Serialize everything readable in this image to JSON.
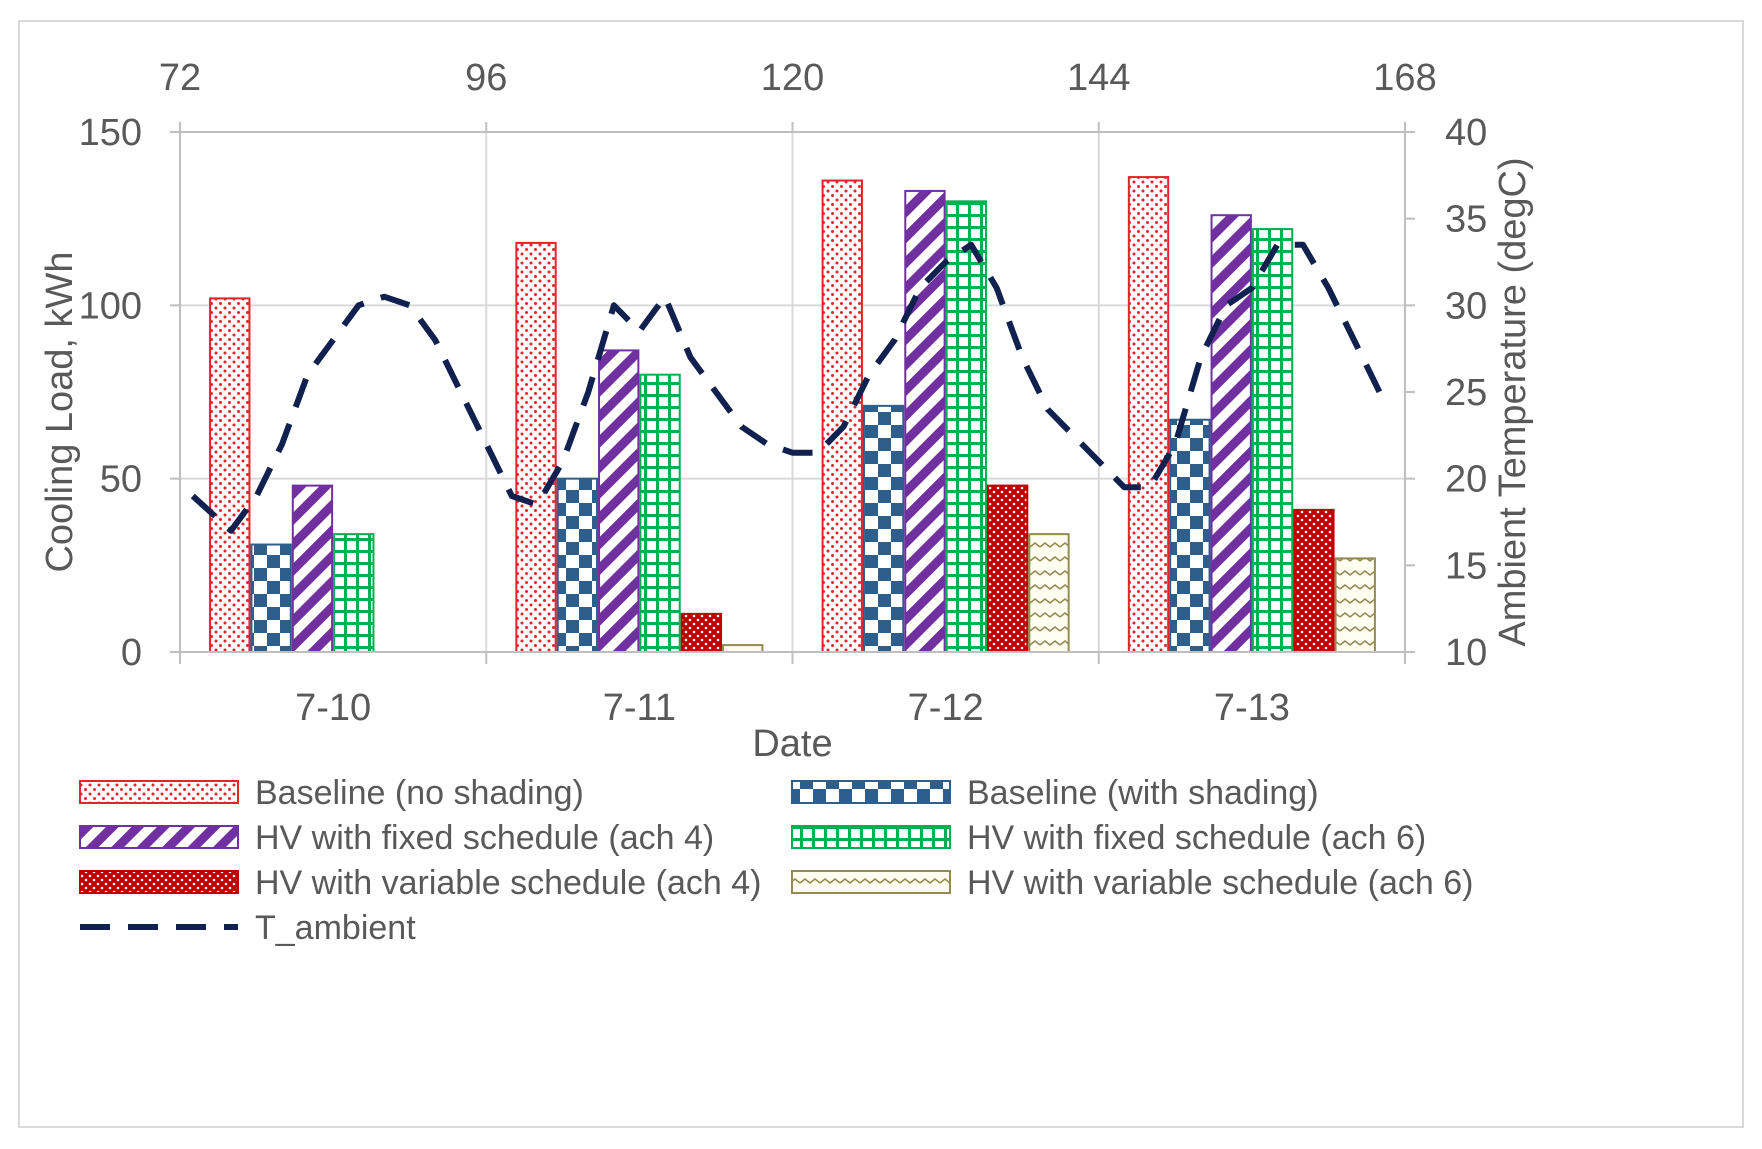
{
  "chart_data": {
    "type": "bar",
    "title": "",
    "xlabel": "Date",
    "ylabel": "Cooling Load, kWh",
    "y2label": "Ambient Temperature (degC)",
    "categories": [
      "7-10",
      "7-11",
      "7-12",
      "7-13"
    ],
    "ylim": [
      0,
      150
    ],
    "yticks": [
      0,
      50,
      100,
      150
    ],
    "y2lim": [
      10,
      40
    ],
    "y2ticks": [
      10,
      15,
      20,
      25,
      30,
      35,
      40
    ],
    "x2lim": [
      72,
      168
    ],
    "x2ticks": [
      72,
      96,
      120,
      144,
      168
    ],
    "legend_position": "bottom",
    "series": [
      {
        "name": "Baseline (no shading)",
        "pattern": "dots",
        "color": "#e8212b",
        "values": [
          102,
          118,
          136,
          137
        ]
      },
      {
        "name": "Baseline (with shading)",
        "pattern": "checker",
        "color": "#2e5f8c",
        "values": [
          31,
          50,
          71,
          67
        ]
      },
      {
        "name": "HV with fixed schedule (ach 4)",
        "pattern": "diagonal",
        "color": "#7030a0",
        "values": [
          48,
          87,
          133,
          126
        ]
      },
      {
        "name": "HV with fixed schedule (ach 6)",
        "pattern": "grid",
        "color": "#00b050",
        "values": [
          34,
          80,
          130,
          122
        ]
      },
      {
        "name": "HV with variable schedule (ach 4)",
        "pattern": "crosshatch",
        "color": "#c00000",
        "values": [
          0,
          11,
          48,
          41
        ]
      },
      {
        "name": "HV with variable schedule (ach 6)",
        "pattern": "wave",
        "color": "#948a54",
        "values": [
          0,
          2,
          34,
          27
        ]
      }
    ],
    "line": {
      "name": "T_ambient",
      "color": "#10204f",
      "axis": "secondary",
      "hours": [
        73,
        76,
        78,
        80,
        82,
        84,
        86,
        88,
        90,
        92,
        94,
        96,
        98,
        100,
        102,
        104,
        106,
        108,
        110,
        112,
        114,
        116,
        118,
        120,
        122,
        124,
        126,
        128,
        130,
        132,
        134,
        136,
        138,
        140,
        142,
        144,
        146,
        148,
        150,
        152,
        154,
        156,
        158,
        160,
        162,
        164,
        166
      ],
      "temps": [
        19,
        17,
        19,
        22,
        26,
        28,
        30,
        30.5,
        30,
        28,
        25,
        22,
        19,
        18.5,
        21,
        25,
        30,
        28.5,
        30.5,
        27,
        25,
        23,
        22,
        21.5,
        21.5,
        23,
        26,
        28,
        31,
        32.5,
        33.5,
        31,
        27,
        24,
        22.5,
        21,
        19.5,
        19.5,
        22,
        27,
        30,
        31,
        33.5,
        33.5,
        31,
        28,
        25
      ]
    }
  }
}
